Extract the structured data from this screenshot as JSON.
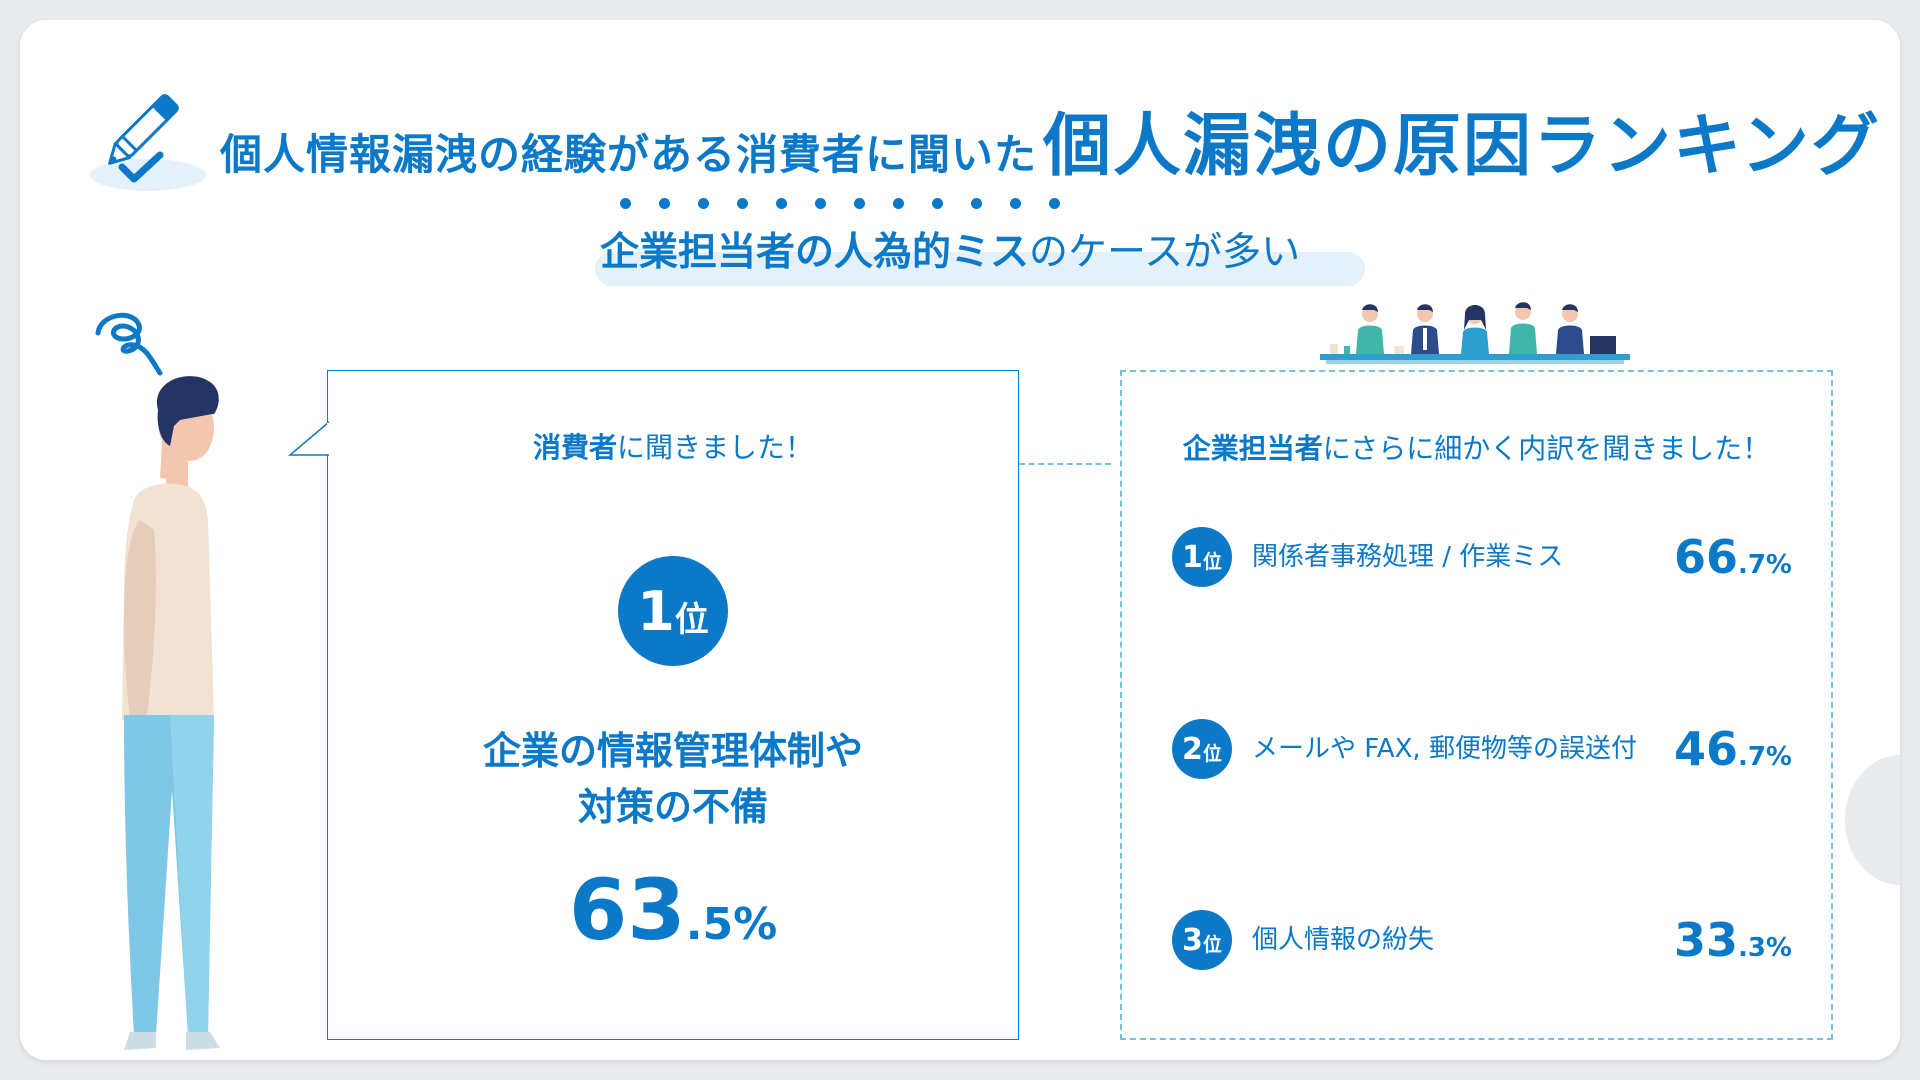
{
  "header": {
    "title_small": "個人情報漏洩の経験がある消費者に聞いた",
    "title_big": "個人漏洩の原因ランキング",
    "subtitle_bold": "企業担当者の人為的ミス",
    "subtitle_rest": "のケースが多い"
  },
  "consumer_box": {
    "heading_bold": "消費者",
    "heading_rest": "に聞きました！",
    "rank_number": "1",
    "rank_unit": "位",
    "cause_line1": "企業の情報管理体制や",
    "cause_line2": "対策の不備",
    "percent_int": "63",
    "percent_dec": ".5%"
  },
  "company_box": {
    "heading_bold": "企業担当者",
    "heading_rest": "にさらに細かく内訳を聞きました！",
    "ranks": [
      {
        "number": "1",
        "unit": "位",
        "label": "関係者事務処理 / 作業ミス",
        "percent_int": "66",
        "percent_dec": ".7%"
      },
      {
        "number": "2",
        "unit": "位",
        "label": "メールや FAX, 郵便物等の誤送付",
        "percent_int": "46",
        "percent_dec": ".7%"
      },
      {
        "number": "3",
        "unit": "位",
        "label": "個人情報の紛失",
        "percent_int": "33",
        "percent_dec": ".3%"
      }
    ]
  },
  "colors": {
    "accent": "#0b78c8",
    "light_blue": "#6fc3df",
    "highlight": "#e4f1fb"
  },
  "icons": [
    "pen-check-icon",
    "confused-scribble-icon",
    "thinking-person-illustration",
    "business-people-illustration"
  ]
}
